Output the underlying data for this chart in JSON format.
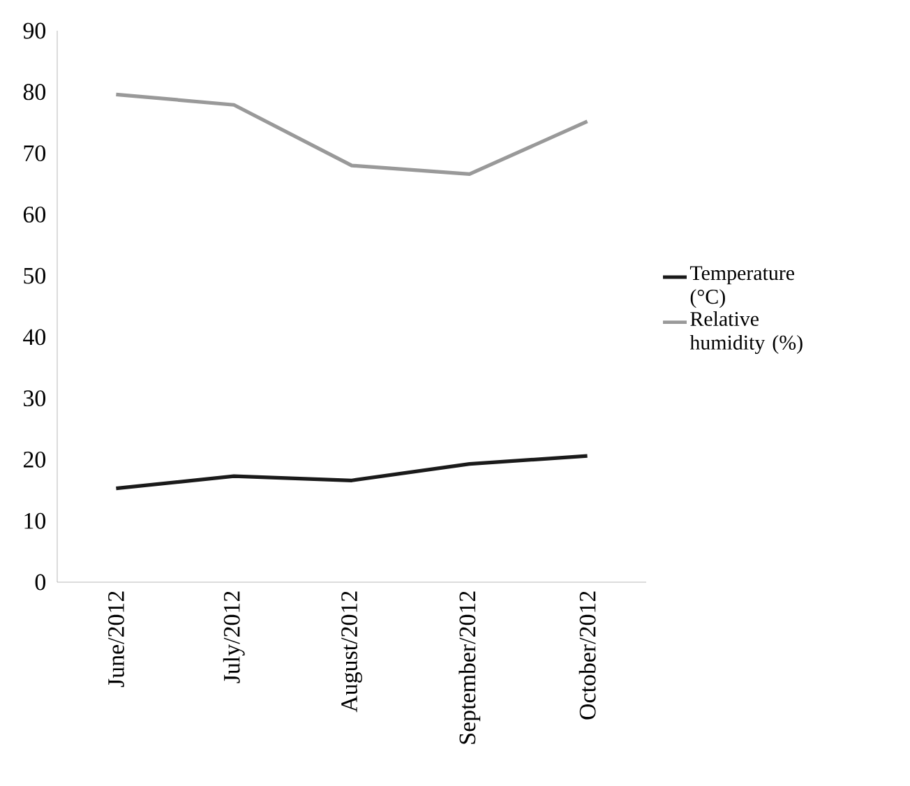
{
  "chart_data": {
    "type": "line",
    "categories": [
      "June/2012",
      "July/2012",
      "August/2012",
      "September/2012",
      "October/2012"
    ],
    "series": [
      {
        "name": "Temperature (°C)",
        "color": "#1a1a1a",
        "values": [
          15.3,
          17.3,
          16.6,
          19.3,
          20.6
        ]
      },
      {
        "name": "Relative humidity (%)",
        "color": "#999999",
        "values": [
          79.6,
          77.9,
          68.0,
          66.6,
          75.2
        ]
      }
    ],
    "ylim": [
      0,
      90
    ],
    "yticks": [
      0,
      10,
      20,
      30,
      40,
      50,
      60,
      70,
      80,
      90
    ],
    "legend": "right"
  }
}
